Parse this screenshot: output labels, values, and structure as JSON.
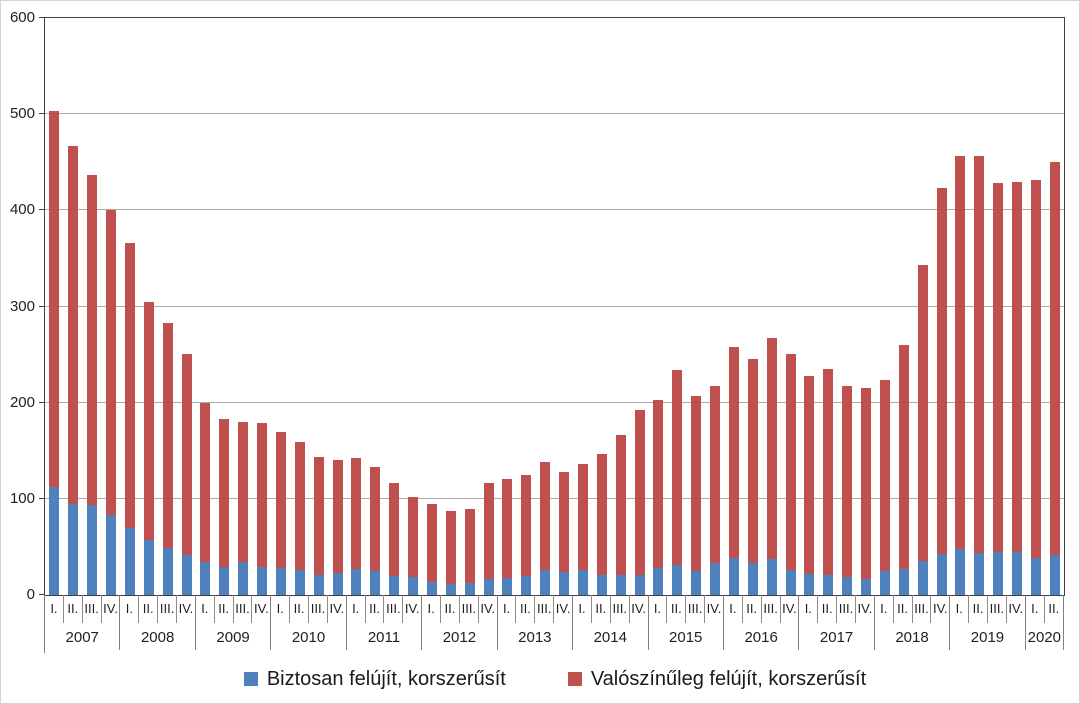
{
  "chart_data": {
    "type": "bar",
    "stacked": true,
    "title": "",
    "xlabel": "",
    "ylabel": "",
    "ylim": [
      0,
      600
    ],
    "yticks": [
      0,
      100,
      200,
      300,
      400,
      500,
      600
    ],
    "grid": "horizontal",
    "legend_position": "bottom",
    "series": [
      {
        "name": "Biztosan felújít, korszerűsít",
        "color": "#4f81bd"
      },
      {
        "name": "Valószínűleg felújít, korszerűsít",
        "color": "#c0504d"
      }
    ],
    "groups": [
      {
        "year": "2007",
        "quarters": [
          "I.",
          "II.",
          "III.",
          "IV."
        ],
        "biztosan": [
          112,
          95,
          94,
          83
        ],
        "valoszinuleg": [
          391,
          372,
          343,
          317
        ]
      },
      {
        "year": "2008",
        "quarters": [
          "I.",
          "II.",
          "III.",
          "IV."
        ],
        "biztosan": [
          70,
          57,
          49,
          42
        ],
        "valoszinuleg": [
          296,
          248,
          234,
          209
        ]
      },
      {
        "year": "2009",
        "quarters": [
          "I.",
          "II.",
          "III.",
          "IV."
        ],
        "biztosan": [
          34,
          29,
          34,
          29
        ],
        "valoszinuleg": [
          166,
          154,
          146,
          150
        ]
      },
      {
        "year": "2010",
        "quarters": [
          "I.",
          "II.",
          "III.",
          "IV."
        ],
        "biztosan": [
          28,
          26,
          21,
          23
        ],
        "valoszinuleg": [
          142,
          133,
          123,
          117
        ]
      },
      {
        "year": "2011",
        "quarters": [
          "I.",
          "II.",
          "III.",
          "IV."
        ],
        "biztosan": [
          27,
          25,
          20,
          19
        ],
        "valoszinuleg": [
          115,
          108,
          97,
          83
        ]
      },
      {
        "year": "2012",
        "quarters": [
          "I.",
          "II.",
          "III.",
          "IV."
        ],
        "biztosan": [
          14,
          11,
          13,
          17
        ],
        "valoszinuleg": [
          81,
          76,
          76,
          99
        ]
      },
      {
        "year": "2013",
        "quarters": [
          "I.",
          "II.",
          "III.",
          "IV."
        ],
        "biztosan": [
          18,
          20,
          26,
          24
        ],
        "valoszinuleg": [
          103,
          105,
          112,
          104
        ]
      },
      {
        "year": "2014",
        "quarters": [
          "I.",
          "II.",
          "III.",
          "IV."
        ],
        "biztosan": [
          26,
          21,
          21,
          21
        ],
        "valoszinuleg": [
          110,
          126,
          145,
          171
        ]
      },
      {
        "year": "2015",
        "quarters": [
          "I.",
          "II.",
          "III.",
          "IV."
        ],
        "biztosan": [
          28,
          31,
          25,
          33
        ],
        "valoszinuleg": [
          175,
          203,
          182,
          184
        ]
      },
      {
        "year": "2016",
        "quarters": [
          "I.",
          "II.",
          "III.",
          "IV."
        ],
        "biztosan": [
          38,
          33,
          37,
          26
        ],
        "valoszinuleg": [
          220,
          212,
          230,
          225
        ]
      },
      {
        "year": "2017",
        "quarters": [
          "I.",
          "II.",
          "III.",
          "IV."
        ],
        "biztosan": [
          22,
          21,
          19,
          17
        ],
        "valoszinuleg": [
          206,
          214,
          198,
          198
        ]
      },
      {
        "year": "2018",
        "quarters": [
          "I.",
          "II.",
          "III.",
          "IV."
        ],
        "biztosan": [
          25,
          27,
          35,
          43
        ],
        "valoszinuleg": [
          199,
          233,
          308,
          380
        ]
      },
      {
        "year": "2019",
        "quarters": [
          "I.",
          "II.",
          "III.",
          "IV."
        ],
        "biztosan": [
          48,
          44,
          45,
          45
        ],
        "valoszinuleg": [
          408,
          412,
          383,
          385
        ]
      },
      {
        "year": "2020",
        "quarters": [
          "I.",
          "II."
        ],
        "biztosan": [
          39,
          42
        ],
        "valoszinuleg": [
          393,
          408
        ]
      }
    ],
    "legend": [
      {
        "label": "Biztosan felújít, korszerűsít",
        "color": "#4f81bd"
      },
      {
        "label": "Valószínűleg felújít, korszerűsít",
        "color": "#c0504d"
      }
    ],
    "colors": {
      "blue": "#4f81bd",
      "red": "#c0504d",
      "gridline": "#ababab",
      "axis": "#3f3f3f"
    }
  }
}
